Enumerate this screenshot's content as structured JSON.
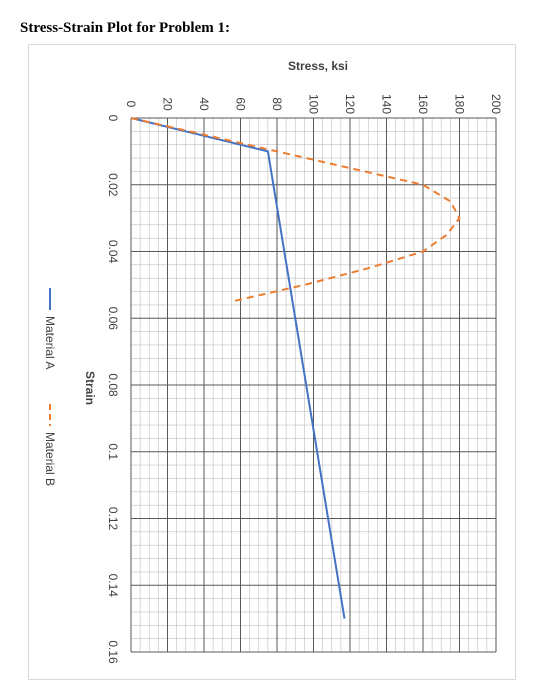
{
  "heading": "Stress-Strain Plot for Problem 1:",
  "colors": {
    "material_a": "#4472C4",
    "material_b": "#ED7D31",
    "grid": "#595959",
    "minor_grid": "#bfbfbf"
  },
  "chart_data": {
    "type": "line",
    "orientation": "rotated 90° clockwise",
    "title": "",
    "xlabel": "Strain",
    "ylabel": "Stress, ksi",
    "xlim": [
      0,
      0.16
    ],
    "ylim": [
      0,
      200
    ],
    "x_ticks": [
      "0",
      "0.02",
      "0.04",
      "0.06",
      "0.08",
      "0.1",
      "0.12",
      "0.14",
      "0.16"
    ],
    "y_ticks": [
      "0",
      "20",
      "40",
      "60",
      "80",
      "100",
      "120",
      "140",
      "160",
      "180",
      "200"
    ],
    "grid": true,
    "legend_position": "bottom",
    "series": [
      {
        "name": "Material A",
        "style": "solid",
        "x": [
          0,
          0.01,
          0.15
        ],
        "y": [
          0,
          75,
          117
        ]
      },
      {
        "name": "Material B",
        "style": "dashed",
        "x": [
          0,
          0.01,
          0.015,
          0.02,
          0.025,
          0.03,
          0.035,
          0.04,
          0.045,
          0.05,
          0.055
        ],
        "y": [
          0,
          80,
          120,
          160,
          175,
          180,
          173,
          160,
          130,
          95,
          55
        ]
      }
    ]
  }
}
